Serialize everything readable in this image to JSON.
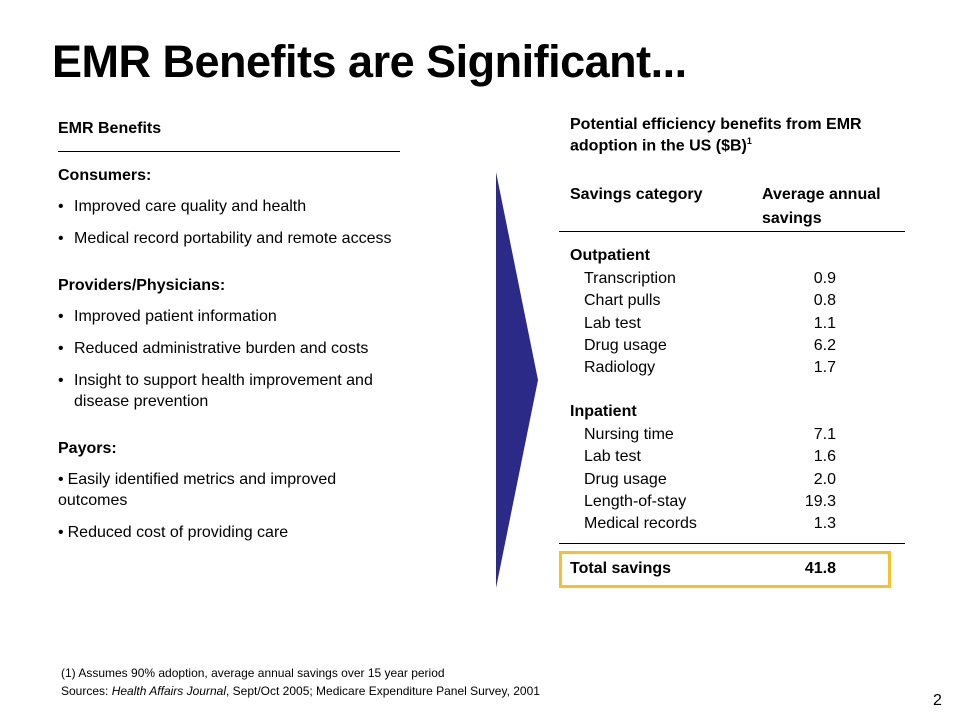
{
  "title": "EMR Benefits are Significant...",
  "left": {
    "header": "EMR Benefits",
    "sections": [
      {
        "title": "Consumers:",
        "bullets": [
          "Improved care quality and health",
          "Medical record portability and remote access"
        ]
      },
      {
        "title": "Providers/Physicians:",
        "bullets": [
          "Improved patient information",
          "Reduced administrative burden and costs",
          "Insight to support health improvement and disease prevention"
        ]
      },
      {
        "title": "Payors:",
        "bullets": [
          "Easily identified metrics and improved outcomes",
          "Reduced cost of providing care"
        ]
      }
    ]
  },
  "right": {
    "header": "Potential efficiency benefits from EMR adoption in the US ($B)",
    "header_sup": "1",
    "col1": "Savings category",
    "col2": "Average annual savings",
    "groups": [
      {
        "label": "Outpatient",
        "rows": [
          {
            "label": "Transcription",
            "value": "0.9"
          },
          {
            "label": "Chart pulls",
            "value": "0.8"
          },
          {
            "label": "Lab test",
            "value": "1.1"
          },
          {
            "label": "Drug usage",
            "value": "6.2"
          },
          {
            "label": "Radiology",
            "value": "1.7"
          }
        ]
      },
      {
        "label": "Inpatient",
        "rows": [
          {
            "label": "Nursing time",
            "value": "7.1"
          },
          {
            "label": "Lab test",
            "value": "1.6"
          },
          {
            "label": "Drug usage",
            "value": "2.0"
          },
          {
            "label": "Length-of-stay",
            "value": "19.3"
          },
          {
            "label": "Medical records",
            "value": "1.3"
          }
        ]
      }
    ],
    "total_label": "Total savings",
    "total_value": "41.8"
  },
  "footnote": {
    "line1": "(1)  Assumes 90% adoption, average annual savings over 15 year period",
    "sources_prefix": "Sources: ",
    "source1": "Health Affairs Journal",
    "source1_rest": ", Sept/Oct 2005; Medicare Expenditure Panel Survey, 2001"
  },
  "page_number": "2",
  "colors": {
    "arrow": "#2b2b87",
    "highlight": "#f5c22b"
  }
}
